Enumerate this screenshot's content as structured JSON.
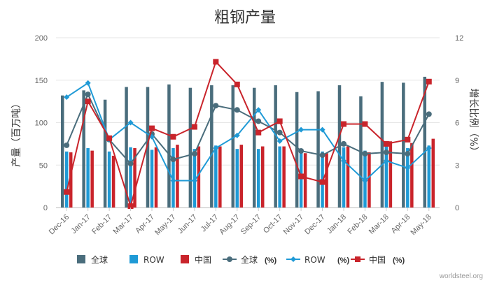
{
  "chart_data": {
    "type": "bar",
    "title": "粗钢产量",
    "ylabel": "产量（百万吨）",
    "y2label": "增长比例（%）",
    "ylim": [
      0,
      200
    ],
    "y2lim": [
      0,
      12
    ],
    "yticks": [
      "0",
      "50",
      "100",
      "150",
      "200"
    ],
    "y2ticks": [
      "0",
      "3",
      "6",
      "9",
      "12"
    ],
    "categories": [
      "Dec-16",
      "Jan-17",
      "Feb-17",
      "Mar-17",
      "Apr-17",
      "May-17",
      "Jun-17",
      "Jul-17",
      "Aug-17",
      "Sep-17",
      "Oct-17",
      "Nov-17",
      "Dec-17",
      "Jan-18",
      "Feb-18",
      "Mar-18",
      "Apr-18",
      "May-18"
    ],
    "bar_series": [
      {
        "name": "全球",
        "color": "#4a6d7c",
        "values": [
          132,
          138,
          127,
          142,
          142,
          145,
          141,
          144,
          144,
          141,
          144,
          136,
          137,
          144,
          131,
          148,
          147,
          154
        ]
      },
      {
        "name": "ROW",
        "color": "#1f9ad6",
        "values": [
          66,
          70,
          66,
          71,
          68,
          70,
          69,
          73,
          69,
          69,
          72,
          65,
          66,
          71,
          67,
          72,
          70,
          73
        ]
      },
      {
        "name": "中国",
        "color": "#c9242b",
        "values": [
          65,
          67,
          61,
          70,
          71,
          74,
          72,
          72,
          74,
          72,
          72,
          64,
          64,
          72,
          65,
          78,
          76,
          81
        ]
      }
    ],
    "line_series": [
      {
        "name": "全球 (%)",
        "color": "#4a6d7c",
        "marker": "circle",
        "values": [
          4.4,
          8.0,
          4.8,
          3.1,
          5.2,
          3.4,
          3.8,
          7.2,
          6.9,
          6.1,
          5.3,
          4.0,
          3.7,
          4.5,
          3.8,
          3.9,
          3.8,
          6.6
        ]
      },
      {
        "name": "ROW (%)",
        "color": "#1f9ad6",
        "marker": "diamond",
        "values": [
          7.8,
          8.8,
          4.8,
          6.0,
          5.0,
          1.9,
          1.9,
          4.2,
          5.1,
          6.9,
          4.7,
          5.5,
          5.5,
          3.3,
          1.9,
          3.3,
          2.8,
          4.2
        ]
      },
      {
        "name": "中国 (%)",
        "color": "#c9242b",
        "marker": "square",
        "values": [
          1.1,
          7.5,
          4.9,
          0.1,
          5.6,
          5.0,
          5.7,
          10.3,
          8.7,
          5.3,
          6.1,
          2.2,
          1.8,
          5.9,
          5.9,
          4.5,
          4.8,
          8.9
        ]
      }
    ],
    "legend": [
      {
        "label": "全球",
        "color": "#4a6d7c",
        "kind": "bar"
      },
      {
        "label": "ROW",
        "color": "#1f9ad6",
        "kind": "bar"
      },
      {
        "label": "中国",
        "color": "#c9242b",
        "kind": "bar"
      },
      {
        "label": "全球",
        "suffix": "(%)",
        "color": "#4a6d7c",
        "kind": "line",
        "marker": "circle"
      },
      {
        "label": "ROW",
        "suffix": "(%)",
        "color": "#1f9ad6",
        "kind": "line",
        "marker": "diamond"
      },
      {
        "label": "中国",
        "suffix": "(%)",
        "color": "#c9242b",
        "kind": "line",
        "marker": "square"
      }
    ],
    "legend_position": "bottom",
    "grid": "horizontal",
    "credit": "worldsteel.org"
  }
}
